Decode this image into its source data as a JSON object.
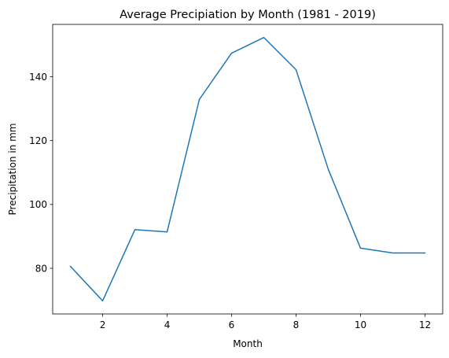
{
  "chart_data": {
    "type": "line",
    "title": "Average Precipiation by Month (1981 - 2019)",
    "xlabel": "Month",
    "ylabel": "Precipitation in mm",
    "x": [
      1,
      2,
      3,
      4,
      5,
      6,
      7,
      8,
      9,
      10,
      11,
      12
    ],
    "series": [
      {
        "values": [
          80.6,
          69.8,
          92.1,
          91.4,
          132.9,
          147.4,
          152.3,
          142.2,
          111.0,
          86.3,
          84.8,
          84.8
        ],
        "color": "#1f77b4"
      }
    ],
    "xlim": [
      0.45,
      12.55
    ],
    "ylim": [
      65.7,
      156.4
    ],
    "xticks": [
      2,
      4,
      6,
      8,
      10,
      12
    ],
    "yticks": [
      80,
      100,
      120,
      140
    ],
    "grid": false,
    "legend": "none"
  }
}
